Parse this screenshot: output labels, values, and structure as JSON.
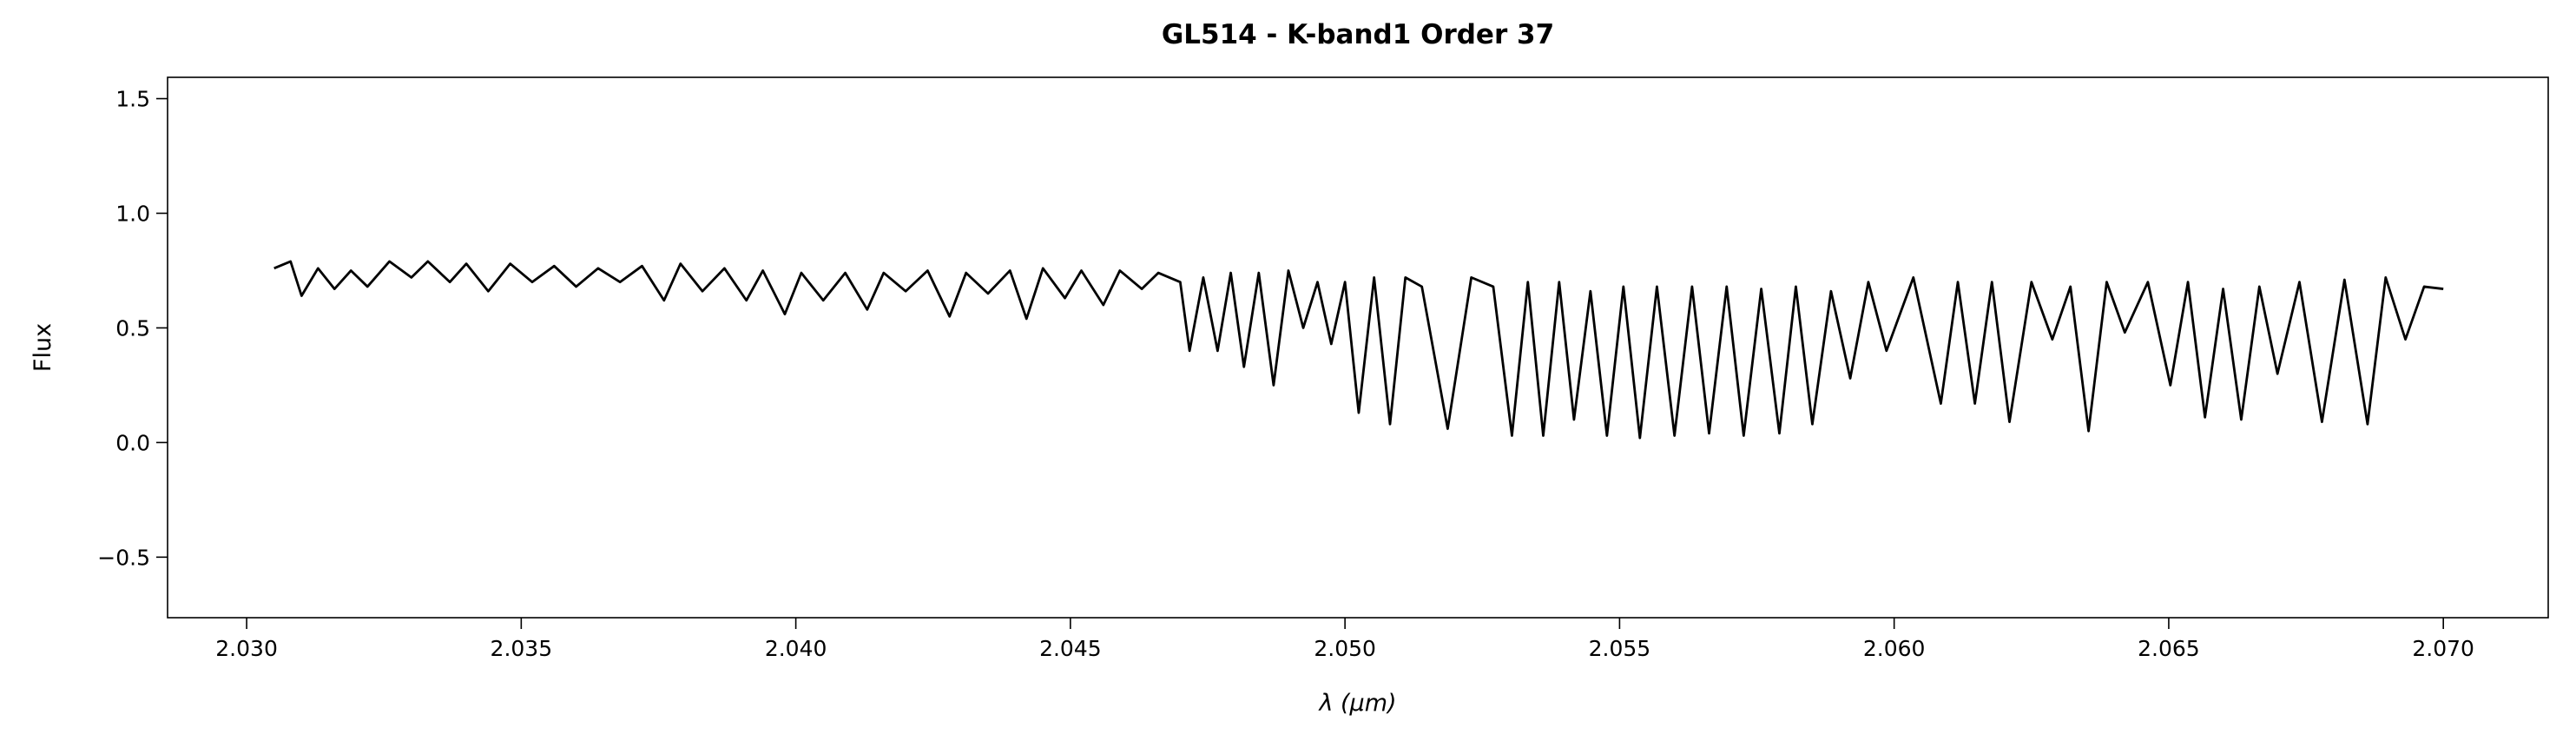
{
  "chart_data": {
    "type": "line",
    "title": "GL514 - K-band1 Order 37",
    "xlabel": "λ (μm)",
    "ylabel": "Flux",
    "color": "#000000",
    "xlim": [
      2.02856,
      2.07191
    ],
    "ylim": [
      -0.764,
      1.593
    ],
    "xticks": [
      {
        "value": 2.03,
        "label": "2.030"
      },
      2.035,
      {
        "value": 2.04,
        "label": "2.040"
      },
      2.045,
      {
        "value": 2.05,
        "label": "2.050"
      },
      2.055,
      {
        "value": 2.06,
        "label": "2.060"
      },
      2.065,
      {
        "value": 2.07,
        "label": "2.070"
      }
    ],
    "yticks": [
      {
        "value": -0.5,
        "label": "−0.5"
      },
      {
        "value": 0,
        "label": "0.0"
      },
      0.5,
      {
        "value": 1,
        "label": "1.0"
      },
      1.5
    ],
    "x": [
      2.0305,
      2.0308,
      2.031,
      2.0313,
      2.0316,
      2.0319,
      2.0322,
      2.0326,
      2.033,
      2.0333,
      2.0337,
      2.034,
      2.0344,
      2.0348,
      2.0352,
      2.0356,
      2.036,
      2.0364,
      2.0368,
      2.0372,
      2.0376,
      2.0379,
      2.0383,
      2.0387,
      2.0391,
      2.0394,
      2.0398,
      2.0401,
      2.0405,
      2.0409,
      2.0413,
      2.0416,
      2.042,
      2.0424,
      2.0428,
      2.0431,
      2.0435,
      2.0439,
      2.0442,
      2.0445,
      2.0449,
      2.0452,
      2.0456,
      2.0459,
      2.0463,
      2.0466,
      2.047,
      2.04717,
      2.04742,
      2.04768,
      2.04792,
      2.04816,
      2.04843,
      2.0487,
      2.04897,
      2.04924,
      2.0495,
      2.04975,
      2.05,
      2.05025,
      2.05053,
      2.05082,
      2.0511,
      2.0514,
      2.05187,
      2.0523,
      2.0527,
      2.05304,
      2.05333,
      2.05361,
      2.0539,
      2.05417,
      2.05447,
      2.05477,
      2.05507,
      2.05537,
      2.05568,
      2.056,
      2.05632,
      2.05663,
      2.05695,
      2.05726,
      2.05758,
      2.05791,
      2.05821,
      2.05851,
      2.05885,
      2.0592,
      2.05953,
      2.05986,
      2.06035,
      2.06085,
      2.06116,
      2.06147,
      2.06178,
      2.0621,
      2.0625,
      2.06288,
      2.06321,
      2.06354,
      2.06387,
      2.0642,
      2.06462,
      2.06503,
      2.06535,
      2.06566,
      2.06599,
      2.06632,
      2.06665,
      2.06698,
      2.06738,
      2.06779,
      2.0682,
      2.06862,
      2.06895,
      2.06931,
      2.06965,
      2.07
    ],
    "values": [
      0.76,
      0.79,
      0.64,
      0.76,
      0.67,
      0.75,
      0.68,
      0.79,
      0.72,
      0.79,
      0.7,
      0.78,
      0.66,
      0.78,
      0.7,
      0.77,
      0.68,
      0.76,
      0.7,
      0.77,
      0.62,
      0.78,
      0.66,
      0.76,
      0.62,
      0.75,
      0.56,
      0.74,
      0.62,
      0.74,
      0.58,
      0.74,
      0.66,
      0.75,
      0.55,
      0.74,
      0.65,
      0.75,
      0.54,
      0.76,
      0.63,
      0.75,
      0.6,
      0.75,
      0.67,
      0.74,
      0.7,
      0.4,
      0.72,
      0.4,
      0.74,
      0.33,
      0.74,
      0.25,
      0.75,
      0.5,
      0.7,
      0.43,
      0.7,
      0.13,
      0.72,
      0.08,
      0.72,
      0.68,
      0.06,
      0.72,
      0.68,
      0.03,
      0.7,
      0.03,
      0.7,
      0.1,
      0.66,
      0.03,
      0.68,
      0.02,
      0.68,
      0.03,
      0.68,
      0.04,
      0.68,
      0.03,
      0.67,
      0.04,
      0.68,
      0.08,
      0.66,
      0.28,
      0.7,
      0.4,
      0.72,
      0.17,
      0.7,
      0.17,
      0.7,
      0.09,
      0.7,
      0.45,
      0.68,
      0.05,
      0.7,
      0.48,
      0.7,
      0.25,
      0.7,
      0.11,
      0.67,
      0.1,
      0.68,
      0.3,
      0.7,
      0.09,
      0.71,
      0.08,
      0.72,
      0.45,
      0.68,
      0.67
    ]
  }
}
